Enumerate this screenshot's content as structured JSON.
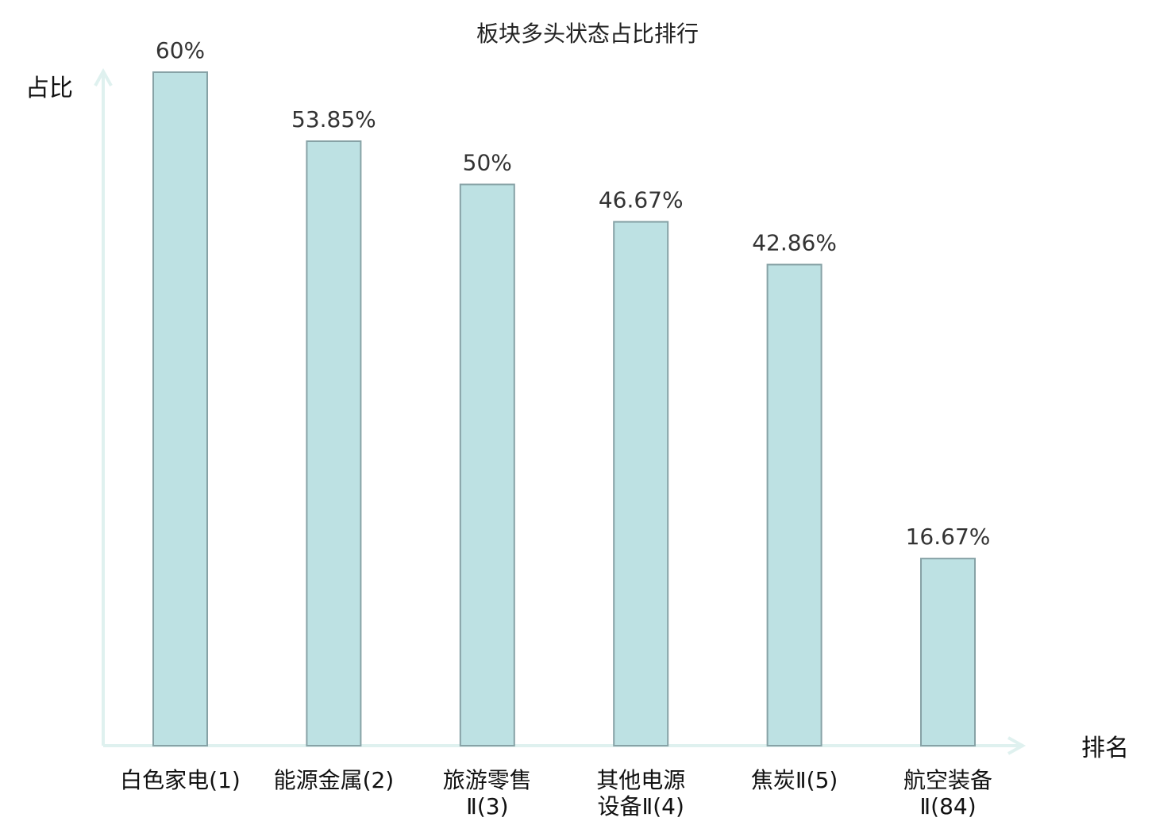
{
  "chart_data": {
    "type": "bar",
    "title": "板块多头状态占比排行",
    "ylabel": "占比",
    "xlabel": "排名",
    "categories": [
      [
        "白色家电(1)"
      ],
      [
        "能源金属(2)"
      ],
      [
        "旅游零售",
        "Ⅱ(3)"
      ],
      [
        "其他电源",
        "设备Ⅱ(4)"
      ],
      [
        "焦炭Ⅱ(5)"
      ],
      [
        "航空装备",
        "Ⅱ(84)"
      ]
    ],
    "values": [
      60,
      53.85,
      50,
      46.67,
      42.86,
      16.67
    ],
    "value_labels": [
      "60%",
      "53.85%",
      "50%",
      "46.67%",
      "42.86%",
      "16.67%"
    ],
    "highlight_index": 5,
    "ylim": [
      0,
      60
    ],
    "grid": false,
    "colors": {
      "bar_fill": "#bde1e3",
      "bar_stroke": "#87a2a6",
      "axis": "#dff1ef",
      "highlight_label": "#e01010",
      "label": "#111111",
      "value_label": "#333333"
    }
  }
}
